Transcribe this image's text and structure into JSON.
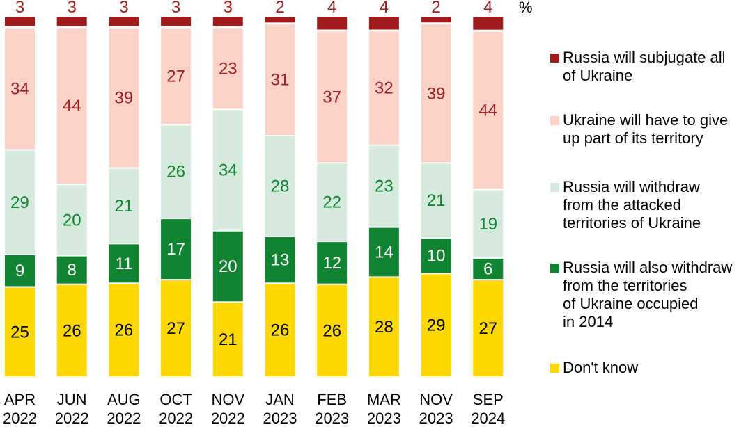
{
  "chart_data": {
    "type": "bar",
    "stacked": true,
    "unit": "%",
    "categories": [
      "APR\n2022",
      "JUN\n2022",
      "AUG\n2022",
      "OCT\n2022",
      "NOV\n2022",
      "JAN\n2023",
      "FEB\n2023",
      "MAR\n2023",
      "NOV\n2023",
      "SEP\n2024"
    ],
    "series": [
      {
        "name": "Don't know",
        "color": "#fcd800",
        "text_color": "#000000",
        "values": [
          25,
          26,
          26,
          27,
          21,
          26,
          26,
          28,
          29,
          27
        ]
      },
      {
        "name": "Russia will also withdraw\nfrom the territories\nof Ukraine occupied\nin 2014",
        "color": "#118432",
        "text_color": "#ffffff",
        "values": [
          9,
          8,
          11,
          17,
          20,
          13,
          12,
          14,
          10,
          6
        ]
      },
      {
        "name": "Russia will withdraw\nfrom the attacked\nterritories of Ukraine",
        "color": "#d5eadc",
        "text_color": "#118432",
        "values": [
          29,
          20,
          21,
          26,
          34,
          28,
          22,
          23,
          21,
          19
        ]
      },
      {
        "name": "Ukraine will have to give\nup part of its territory",
        "color": "#fad2c8",
        "text_color": "#a02020",
        "values": [
          34,
          44,
          39,
          27,
          23,
          31,
          37,
          32,
          39,
          44
        ]
      },
      {
        "name": "Russia will subjugate all\nof Ukraine",
        "color": "#a01c1c",
        "text_color": "#a01c1c",
        "values": [
          3,
          3,
          3,
          3,
          3,
          2,
          4,
          4,
          2,
          4
        ]
      }
    ],
    "legend_order": [
      4,
      3,
      2,
      1,
      0
    ],
    "legend_position": "right",
    "grid": false
  }
}
